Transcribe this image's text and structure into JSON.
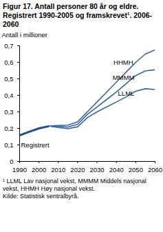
{
  "chart_data": {
    "type": "line",
    "title": "Figur 17. Antall personer 80 år og eldre. Registrert 1990-2005 og framskrevet¹. 2006-2060",
    "y_label": "Antall i millioner",
    "footnote": "¹ LLML Lav nasjonal vekst, MMMM Middels nasjonal vekst, HHMH Høy nasjonal vekst.",
    "source": "Kilde: Statistisk sentralbyrå.",
    "x": [
      1990,
      1995,
      2000,
      2005,
      2006,
      2010,
      2015,
      2020,
      2025,
      2030,
      2035,
      2040,
      2045,
      2050,
      2055,
      2060
    ],
    "series": [
      {
        "name": "Registrert",
        "color": "#1f4e8c",
        "line_style": "thick",
        "values": [
          0.158,
          0.18,
          0.2,
          0.213,
          null,
          null,
          null,
          null,
          null,
          null,
          null,
          null,
          null,
          null,
          null,
          null
        ]
      },
      {
        "name": "HHMH",
        "color": "#3a64a0",
        "line_style": "solid",
        "values": [
          null,
          null,
          null,
          null,
          0.215,
          0.218,
          0.22,
          0.24,
          0.3,
          0.36,
          0.42,
          0.48,
          0.54,
          0.6,
          0.65,
          0.675
        ]
      },
      {
        "name": "MMMM",
        "color": "#3a64a0",
        "line_style": "solid",
        "values": [
          null,
          null,
          null,
          null,
          0.214,
          0.212,
          0.208,
          0.225,
          0.285,
          0.33,
          0.375,
          0.42,
          0.47,
          0.52,
          0.548,
          0.555
        ]
      },
      {
        "name": "LLML",
        "color": "#3a64a0",
        "line_style": "solid",
        "values": [
          null,
          null,
          null,
          null,
          0.213,
          0.205,
          0.198,
          0.21,
          0.265,
          0.3,
          0.33,
          0.36,
          0.39,
          0.425,
          0.44,
          0.435
        ]
      }
    ],
    "xlim": [
      1990,
      2060
    ],
    "xticks": [
      1990,
      2000,
      2010,
      2020,
      2030,
      2040,
      2050,
      2060
    ],
    "ylim": [
      0,
      0.7
    ],
    "yticks": [
      0,
      {
        "value": 0.1,
        "label": "0,1"
      },
      {
        "value": 0.2,
        "label": "0,2"
      },
      {
        "value": 0.3,
        "label": "0,3"
      },
      {
        "value": 0.4,
        "label": "0,4"
      },
      {
        "value": 0.5,
        "label": "0,5"
      },
      {
        "value": 0.6,
        "label": "0,6"
      },
      {
        "value": 0.7,
        "label": "0,7"
      }
    ],
    "grid": false
  }
}
